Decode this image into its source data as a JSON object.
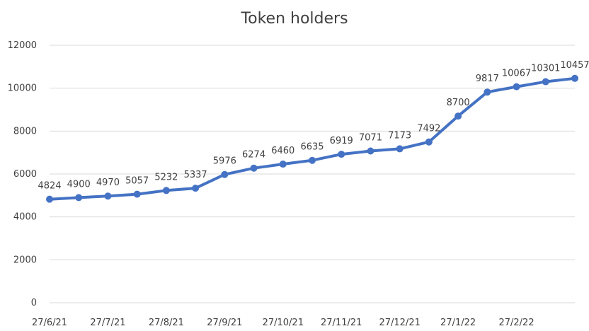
{
  "chart_data": {
    "type": "line",
    "title": "Token holders",
    "xlabel": "",
    "ylabel": "",
    "ylim": [
      0,
      12000
    ],
    "yticks": [
      0,
      2000,
      4000,
      6000,
      8000,
      10000,
      12000
    ],
    "grid": true,
    "legend": "none",
    "x_tick_labels": [
      "27/6/21",
      "27/7/21",
      "27/8/21",
      "27/9/21",
      "27/10/21",
      "27/11/21",
      "27/12/21",
      "27/1/22",
      "27/2/22"
    ],
    "series": [
      {
        "color": "#4472c4",
        "values": [
          4824,
          4900,
          4970,
          5057,
          5232,
          5337,
          5976,
          6274,
          6460,
          6635,
          6919,
          7071,
          7173,
          7492,
          8700,
          9817,
          10067,
          10301,
          10457
        ],
        "data_labels": [
          "4824",
          "4900",
          "4970",
          "5057",
          "5232",
          "5337",
          "5976",
          "6274",
          "6460",
          "6635",
          "6919",
          "7071",
          "7173",
          "7492",
          "8700",
          "9817",
          "10067",
          "10301",
          "10457"
        ]
      }
    ]
  }
}
